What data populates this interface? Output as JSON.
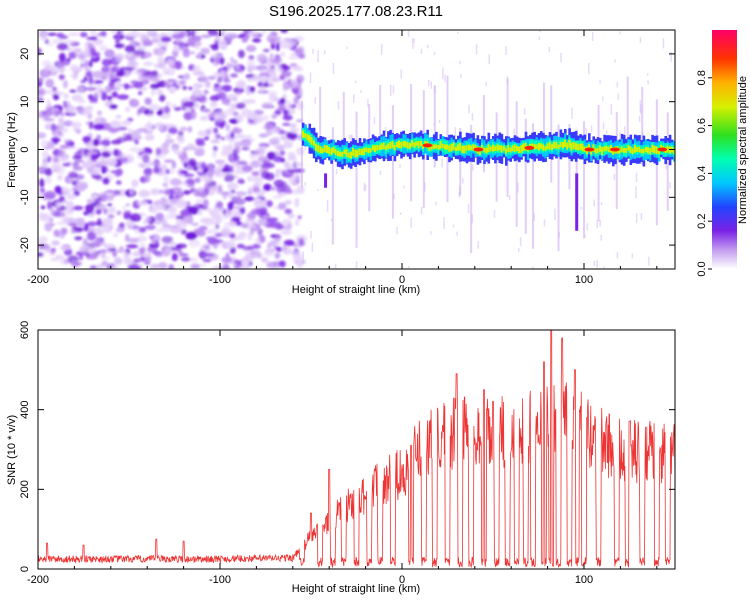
{
  "title": "S196.2025.177.08.23.R11",
  "colors": {
    "snr_line": "#ee3333",
    "axis": "#000000",
    "noise_purple": "#7a22e6",
    "noise_light": "#e2ccf8"
  },
  "chart_data": [
    {
      "type": "heatmap",
      "xlabel": "Height of straight line (km)",
      "ylabel": "Frequency (Hz)",
      "xlim": [
        -200,
        150
      ],
      "ylim": [
        -25,
        25
      ],
      "x_ticks": [
        -200,
        -100,
        0,
        100
      ],
      "y_ticks": [
        -20,
        -10,
        0,
        10,
        20
      ],
      "x_tick_labels": [
        "-200",
        "-100",
        "0",
        "100"
      ],
      "y_tick_labels": [
        "-20",
        "-10",
        "0",
        "10",
        "20"
      ],
      "colorbar": {
        "label": "Normalized spectral amplitude",
        "colormap": "rainbow",
        "range": [
          0,
          1
        ],
        "ticks": [
          0.0,
          0.2,
          0.4,
          0.6,
          0.8
        ],
        "tick_labels": [
          "0.0",
          "0.2",
          "0.4",
          "0.6",
          "0.8"
        ]
      },
      "noise_region_x": [
        -200,
        -55
      ],
      "signal": {
        "x_start": -55,
        "frequency_center": 0,
        "center_track": [
          {
            "x": -55,
            "f": 3
          },
          {
            "x": -45,
            "f": 0
          },
          {
            "x": -30,
            "f": -1
          },
          {
            "x": -20,
            "f": 0
          },
          {
            "x": 0,
            "f": 1
          },
          {
            "x": 10,
            "f": 1
          },
          {
            "x": 40,
            "f": 0
          },
          {
            "x": 60,
            "f": 0
          },
          {
            "x": 90,
            "f": 1
          },
          {
            "x": 100,
            "f": 0
          },
          {
            "x": 150,
            "f": 0
          }
        ]
      }
    },
    {
      "type": "line",
      "xlabel": "Height of straight line (km)",
      "ylabel": "SNR (10 * v/v)",
      "xlim": [
        -200,
        150
      ],
      "ylim": [
        0,
        600
      ],
      "x_ticks": [
        -200,
        -100,
        0,
        100
      ],
      "y_ticks": [
        0,
        200,
        400,
        600
      ],
      "x_tick_labels": [
        "-200",
        "-100",
        "0",
        "100"
      ],
      "y_tick_labels": [
        "0",
        "200",
        "400",
        "600"
      ],
      "envelope": [
        {
          "x": -200,
          "y": 25
        },
        {
          "x": -150,
          "y": 25
        },
        {
          "x": -100,
          "y": 25
        },
        {
          "x": -60,
          "y": 28
        },
        {
          "x": -50,
          "y": 80
        },
        {
          "x": -40,
          "y": 120
        },
        {
          "x": -30,
          "y": 160
        },
        {
          "x": -20,
          "y": 190
        },
        {
          "x": -10,
          "y": 220
        },
        {
          "x": 0,
          "y": 240
        },
        {
          "x": 10,
          "y": 300
        },
        {
          "x": 20,
          "y": 330
        },
        {
          "x": 40,
          "y": 350
        },
        {
          "x": 60,
          "y": 340
        },
        {
          "x": 80,
          "y": 380
        },
        {
          "x": 90,
          "y": 420
        },
        {
          "x": 100,
          "y": 340
        },
        {
          "x": 120,
          "y": 300
        },
        {
          "x": 140,
          "y": 290
        },
        {
          "x": 150,
          "y": 300
        }
      ],
      "dropouts": [
        -55,
        -45,
        -38,
        -32,
        -25,
        -18,
        -12,
        -5,
        5,
        12,
        18,
        25,
        32,
        38,
        45,
        52,
        58,
        63,
        68,
        72,
        78,
        82,
        86,
        92,
        96,
        100,
        108,
        118,
        124,
        132,
        140,
        146
      ],
      "peaks": [
        {
          "x": -195,
          "y": 65
        },
        {
          "x": -175,
          "y": 60
        },
        {
          "x": -135,
          "y": 75
        },
        {
          "x": -120,
          "y": 70
        },
        {
          "x": -50,
          "y": 140
        },
        {
          "x": -40,
          "y": 250
        },
        {
          "x": 5,
          "y": 310
        },
        {
          "x": 30,
          "y": 490
        },
        {
          "x": 45,
          "y": 450
        },
        {
          "x": 50,
          "y": 420
        },
        {
          "x": 78,
          "y": 520
        },
        {
          "x": 82,
          "y": 605
        },
        {
          "x": 88,
          "y": 580
        },
        {
          "x": 95,
          "y": 500
        },
        {
          "x": 125,
          "y": 370
        }
      ]
    }
  ]
}
